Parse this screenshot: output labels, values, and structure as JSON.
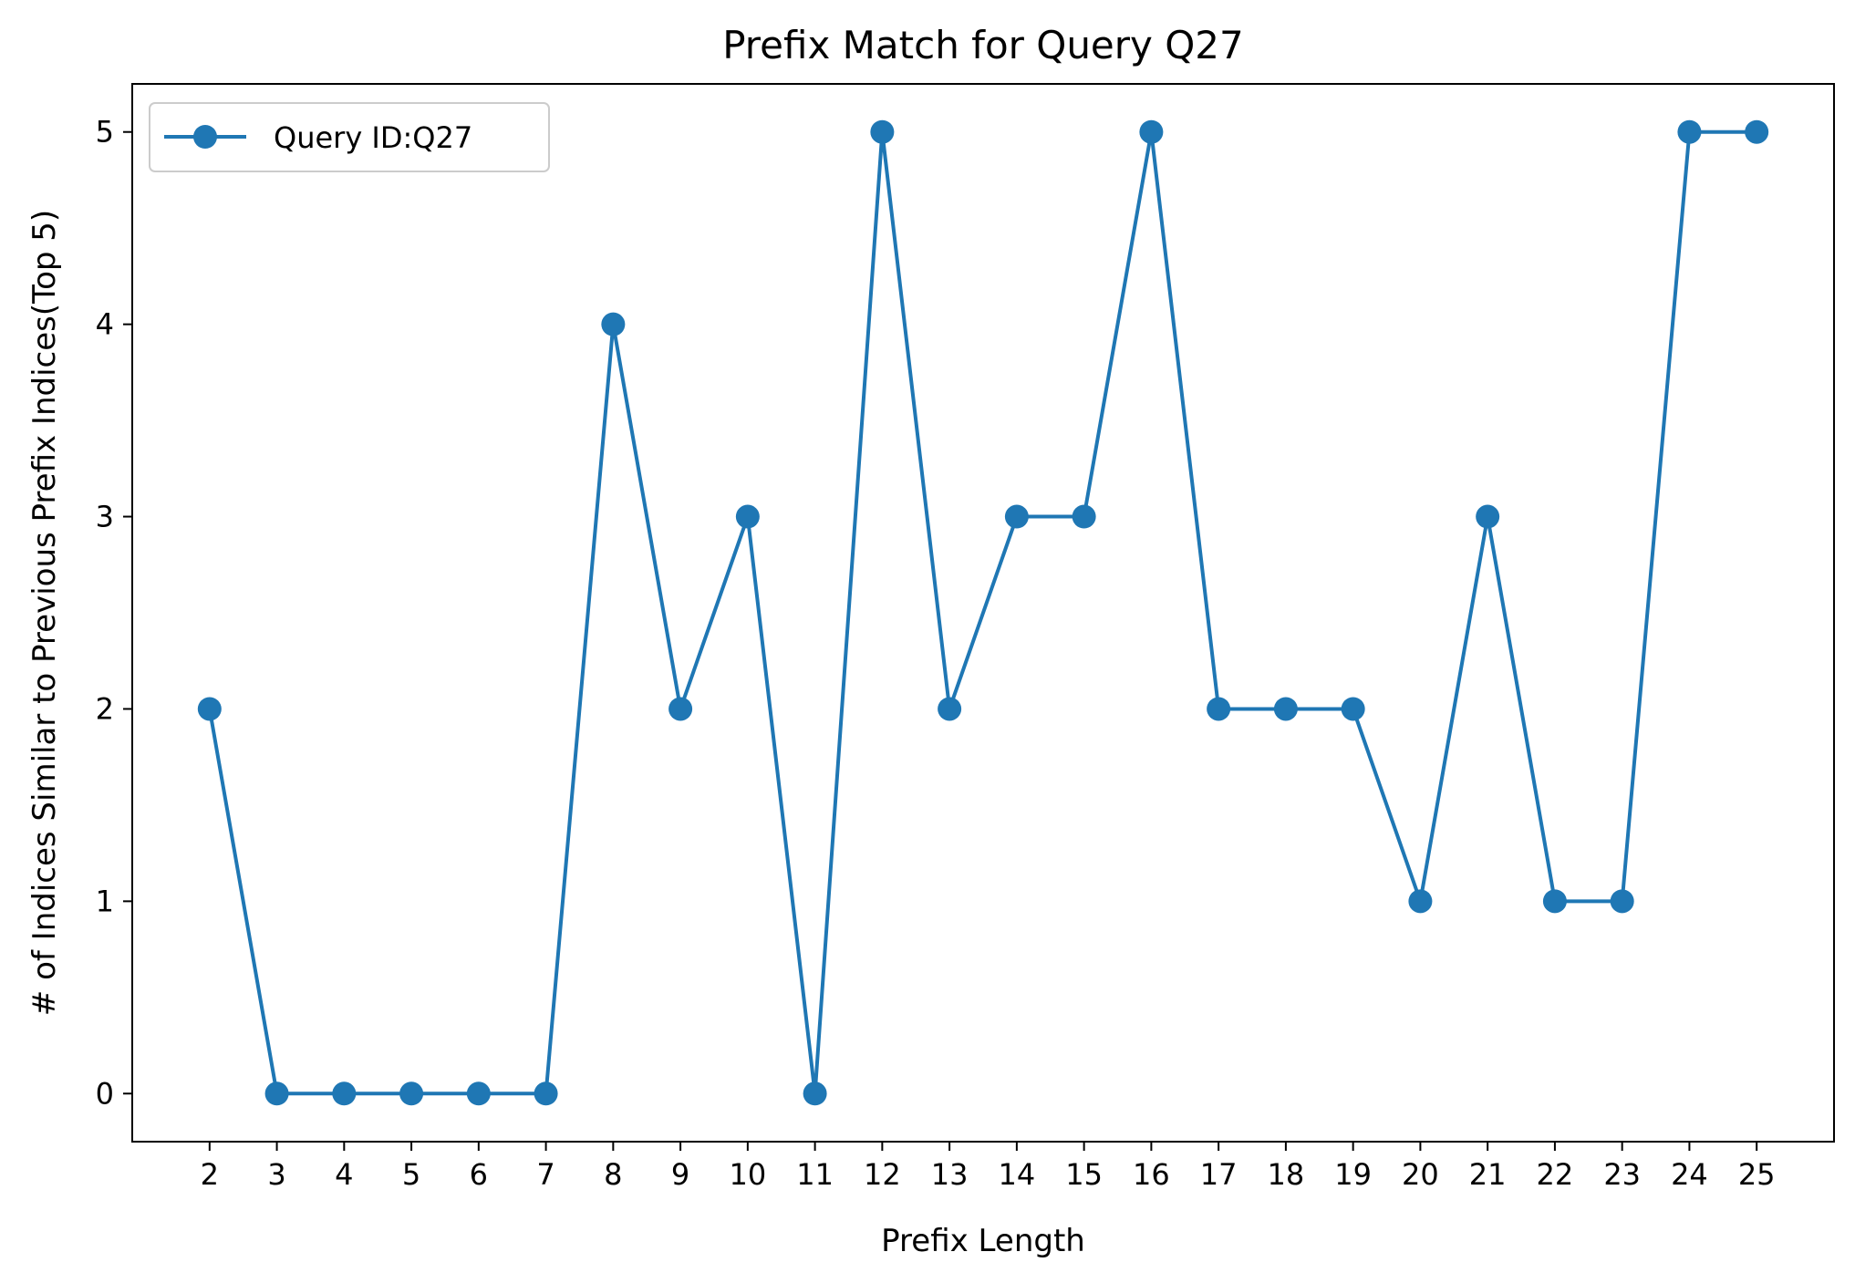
{
  "chart_data": {
    "type": "line",
    "title": "Prefix Match for Query Q27",
    "xlabel": "Prefix Length",
    "ylabel": "# of Indices Similar to Previous Prefix Indices(Top 5)",
    "x": [
      2,
      3,
      4,
      5,
      6,
      7,
      8,
      9,
      10,
      11,
      12,
      13,
      14,
      15,
      16,
      17,
      18,
      19,
      20,
      21,
      22,
      23,
      24,
      25
    ],
    "xticks": [
      "2",
      "3",
      "4",
      "5",
      "6",
      "7",
      "8",
      "9",
      "10",
      "11",
      "12",
      "13",
      "14",
      "15",
      "16",
      "17",
      "18",
      "19",
      "20",
      "21",
      "22",
      "23",
      "24",
      "25"
    ],
    "yticks": [
      "0",
      "1",
      "2",
      "3",
      "4",
      "5"
    ],
    "xlim": [
      0.85,
      26.15
    ],
    "ylim": [
      -0.25,
      5.25
    ],
    "grid": false,
    "legend_position": "top-left",
    "series": [
      {
        "name": "Query ID:Q27",
        "color": "#1f77b4",
        "marker": "circle",
        "values": [
          2,
          0,
          0,
          0,
          0,
          0,
          4,
          2,
          3,
          0,
          5,
          2,
          3,
          3,
          5,
          2,
          2,
          2,
          1,
          3,
          1,
          1,
          5,
          5
        ]
      }
    ]
  }
}
